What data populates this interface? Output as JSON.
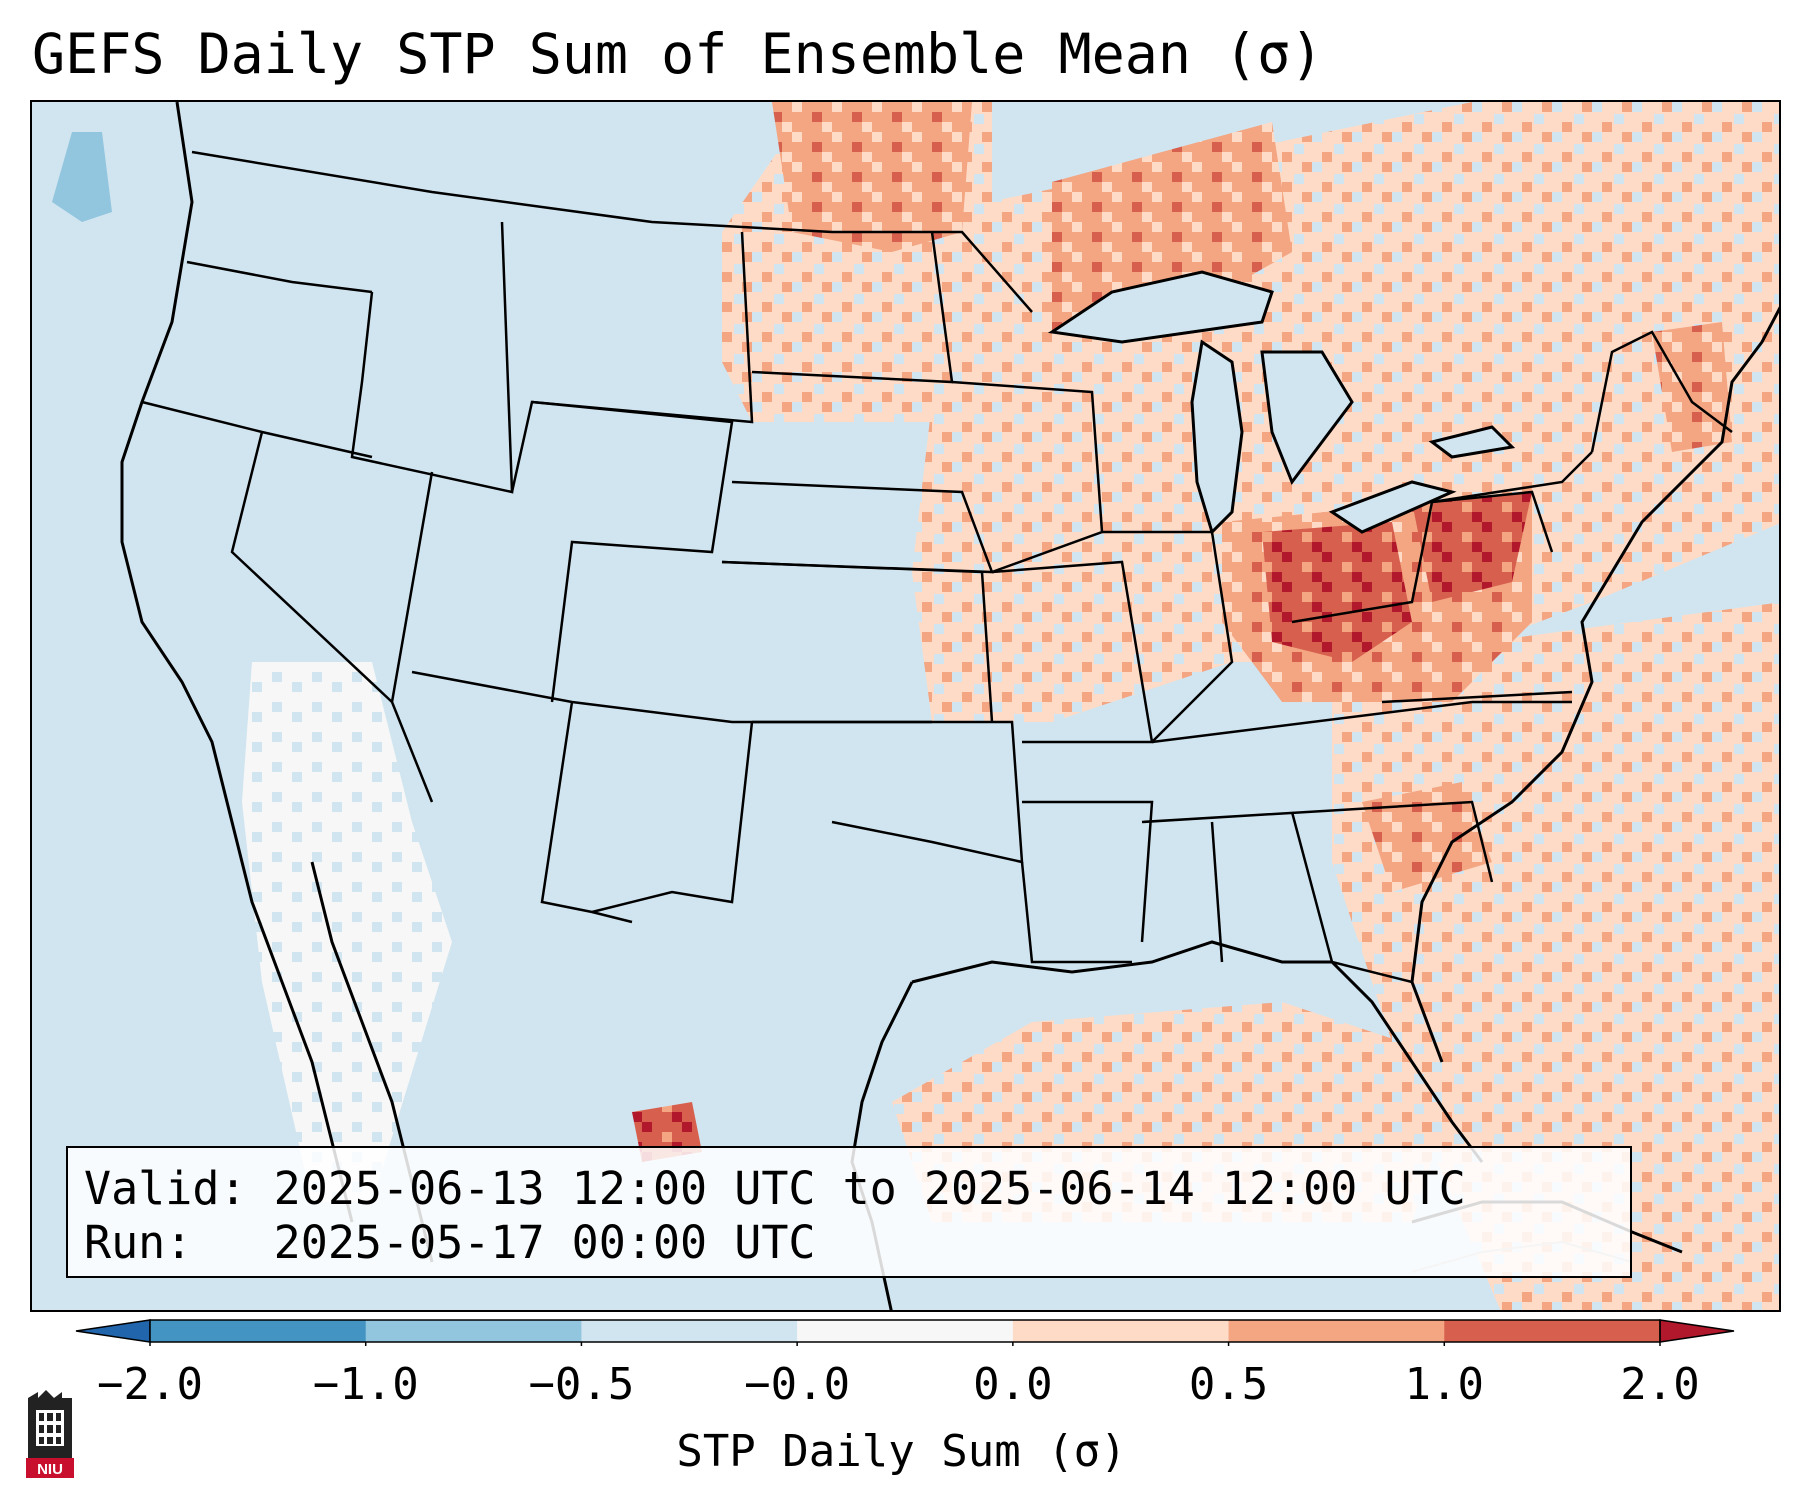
{
  "title": "GEFS Daily STP Sum of Ensemble Mean (σ)",
  "info": {
    "valid_label": "Valid:",
    "valid_value": "2025-06-13 12:00 UTC to 2025-06-14 12:00 UTC",
    "run_label": "Run:",
    "run_value": "2025-05-17 00:00 UTC"
  },
  "colorbar": {
    "label": "STP Daily Sum (σ)",
    "ticks": [
      "−2.0",
      "−1.0",
      "−0.5",
      "−0.0",
      "0.0",
      "0.5",
      "1.0",
      "2.0"
    ],
    "bins": [
      {
        "color": "#2166ac"
      },
      {
        "color": "#4393c3"
      },
      {
        "color": "#92c5de"
      },
      {
        "color": "#d1e5f0"
      },
      {
        "color": "#f7f7f7"
      },
      {
        "color": "#fddbc7"
      },
      {
        "color": "#f4a582"
      },
      {
        "color": "#d6604d"
      },
      {
        "color": "#b2182b"
      }
    ]
  },
  "logo": {
    "text": "NIU",
    "icon": "university-tower-icon"
  },
  "map": {
    "region": "CONUS",
    "anomaly_areas": [
      {
        "name": "upper-midwest-great-lakes",
        "level": 1.0
      },
      {
        "name": "ohio-valley",
        "level": 1.5
      },
      {
        "name": "mid-atlantic",
        "level": 1.0
      },
      {
        "name": "northern-plains",
        "level": 1.0
      },
      {
        "name": "new-england",
        "level": 0.5
      },
      {
        "name": "southeast-atlantic",
        "level": 0.5
      },
      {
        "name": "gulf-of-mexico",
        "level": 0.5
      },
      {
        "name": "northern-mexico",
        "level": 1.0
      },
      {
        "name": "southwest-desert",
        "level": 0.0
      }
    ]
  }
}
